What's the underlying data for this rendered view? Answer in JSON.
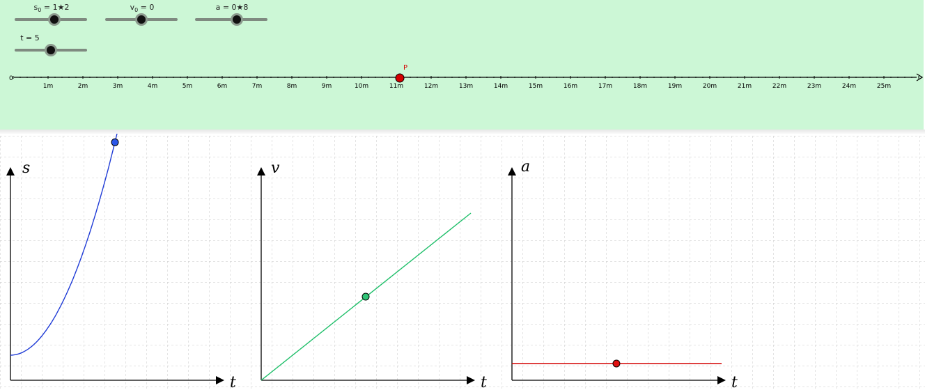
{
  "sliders": [
    {
      "id": "s0",
      "base": "s",
      "sub": "0",
      "value_text": " = 1★2",
      "fraction": 0.55
    },
    {
      "id": "v0",
      "base": "v",
      "sub": "0",
      "value_text": " = 0",
      "fraction": 0.5
    },
    {
      "id": "a",
      "base": "a",
      "sub": "",
      "value_text": " = 0★8",
      "fraction": 0.58
    },
    {
      "id": "t",
      "base": "t",
      "sub": "",
      "value_text": " = 5",
      "fraction": 0.5
    }
  ],
  "number_line": {
    "origin_label": "0",
    "ticks": [
      "1m",
      "2m",
      "3m",
      "4m",
      "5m",
      "6m",
      "7m",
      "8m",
      "9m",
      "10m",
      "11m",
      "12m",
      "13m",
      "14m",
      "15m",
      "16m",
      "17m",
      "18m",
      "19m",
      "20m",
      "21m",
      "22m",
      "23m",
      "24m",
      "25m"
    ],
    "point_label": "P",
    "point_value": 11.1,
    "point_color": "#d40000"
  },
  "graphs": [
    {
      "id": "s-t",
      "y_label": "s",
      "x_label": "t",
      "curve": "parabola",
      "color": "#1f3bd6",
      "dot_color": "#2a56e8"
    },
    {
      "id": "v-t",
      "y_label": "v",
      "x_label": "t",
      "curve": "line",
      "color": "#1fbf6a",
      "dot_color": "#2fc476"
    },
    {
      "id": "a-t",
      "y_label": "a",
      "x_label": "t",
      "curve": "constant",
      "color": "#d40000",
      "dot_color": "#e01010"
    }
  ],
  "colors": {
    "panel_bg": "#ccf7d6",
    "grid": "#c8c8c8"
  }
}
